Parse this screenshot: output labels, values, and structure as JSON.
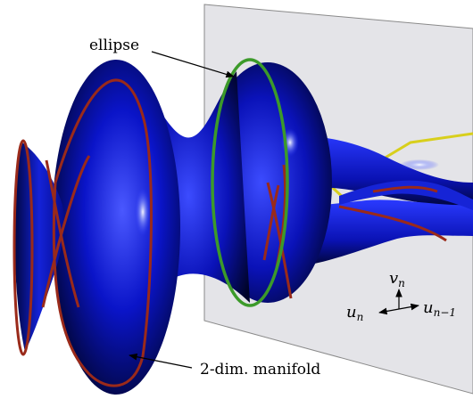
{
  "labels": {
    "ellipse": "ellipse",
    "manifold": "2-dim. manifold"
  },
  "axes": {
    "v_base": "v",
    "v_sub": "n",
    "u_left_base": "u",
    "u_left_sub": "n",
    "u_right_base": "u",
    "u_right_sub": "n−1"
  },
  "colors": {
    "surface": "#0a14c8",
    "surface_dark": "#000033",
    "ellipse_curve": "#3c9a2a",
    "boundary_curve": "#9a2a1a",
    "plane": "#e4e4e8",
    "plane_edge": "#8a8a8a",
    "yellow_curve": "#d8cf1c"
  }
}
